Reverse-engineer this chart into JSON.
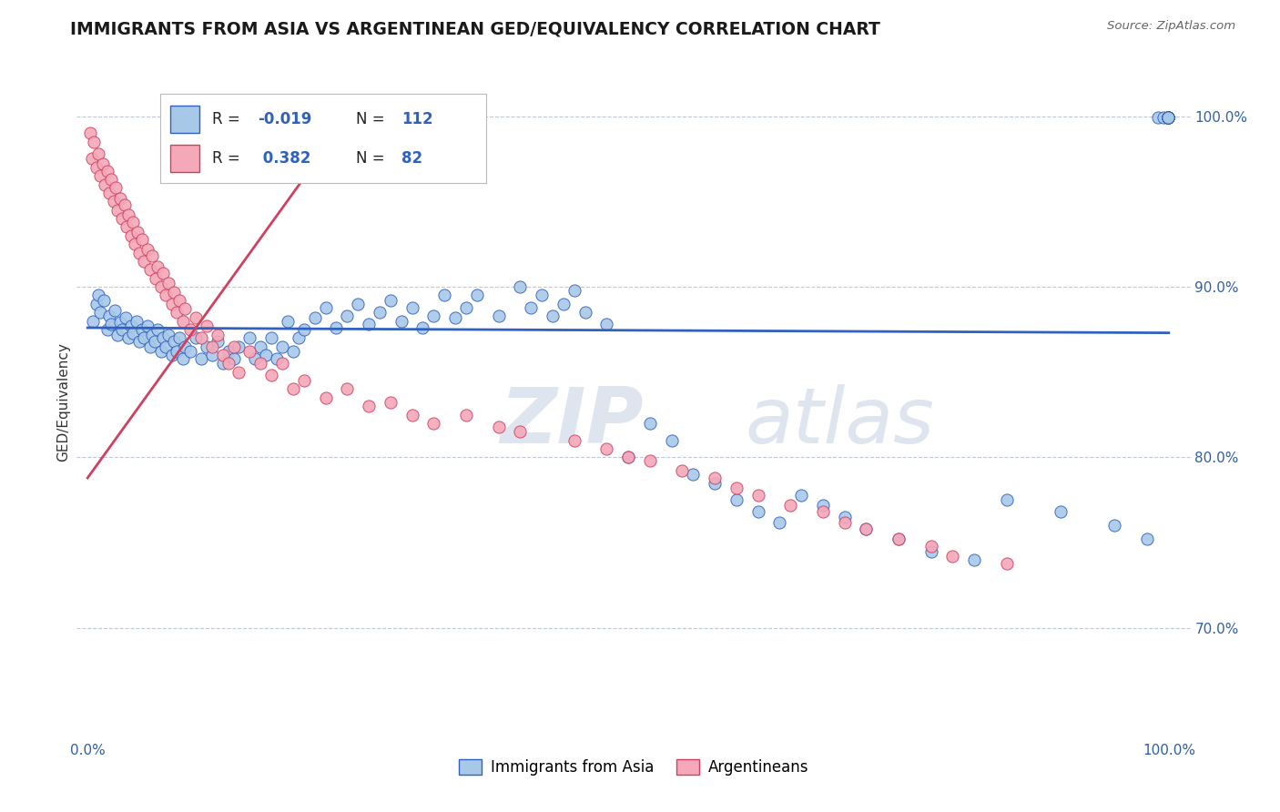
{
  "title": "IMMIGRANTS FROM ASIA VS ARGENTINEAN GED/EQUIVALENCY CORRELATION CHART",
  "source_text": "Source: ZipAtlas.com",
  "ylabel": "GED/Equivalency",
  "color_blue": "#a8c8e8",
  "color_pink": "#f4a8b8",
  "line_blue": "#3060c0",
  "line_pink": "#d04060",
  "watermark_zip": "ZIP",
  "watermark_atlas": "atlas",
  "blue_x": [
    0.005,
    0.008,
    0.01,
    0.012,
    0.015,
    0.018,
    0.02,
    0.022,
    0.025,
    0.028,
    0.03,
    0.032,
    0.035,
    0.038,
    0.04,
    0.042,
    0.045,
    0.048,
    0.05,
    0.052,
    0.055,
    0.058,
    0.06,
    0.062,
    0.065,
    0.068,
    0.07,
    0.072,
    0.075,
    0.078,
    0.08,
    0.082,
    0.085,
    0.088,
    0.09,
    0.095,
    0.1,
    0.105,
    0.11,
    0.115,
    0.12,
    0.125,
    0.13,
    0.135,
    0.14,
    0.15,
    0.155,
    0.16,
    0.165,
    0.17,
    0.175,
    0.18,
    0.185,
    0.19,
    0.195,
    0.2,
    0.21,
    0.22,
    0.23,
    0.24,
    0.25,
    0.26,
    0.27,
    0.28,
    0.29,
    0.3,
    0.31,
    0.32,
    0.33,
    0.34,
    0.35,
    0.36,
    0.38,
    0.4,
    0.41,
    0.42,
    0.43,
    0.44,
    0.45,
    0.46,
    0.48,
    0.5,
    0.52,
    0.54,
    0.56,
    0.58,
    0.6,
    0.62,
    0.64,
    0.66,
    0.68,
    0.7,
    0.72,
    0.75,
    0.78,
    0.82,
    0.85,
    0.9,
    0.95,
    0.98,
    0.99,
    0.995,
    0.999,
    0.999,
    0.999,
    0.999,
    0.999,
    0.999,
    0.999,
    0.999,
    0.999,
    0.999
  ],
  "blue_y": [
    0.88,
    0.89,
    0.895,
    0.885,
    0.892,
    0.875,
    0.883,
    0.878,
    0.886,
    0.872,
    0.879,
    0.875,
    0.882,
    0.87,
    0.877,
    0.873,
    0.88,
    0.868,
    0.875,
    0.87,
    0.877,
    0.865,
    0.872,
    0.868,
    0.875,
    0.862,
    0.87,
    0.865,
    0.872,
    0.86,
    0.868,
    0.862,
    0.87,
    0.858,
    0.865,
    0.862,
    0.87,
    0.858,
    0.865,
    0.86,
    0.868,
    0.855,
    0.862,
    0.858,
    0.865,
    0.87,
    0.858,
    0.865,
    0.86,
    0.87,
    0.858,
    0.865,
    0.88,
    0.862,
    0.87,
    0.875,
    0.882,
    0.888,
    0.876,
    0.883,
    0.89,
    0.878,
    0.885,
    0.892,
    0.88,
    0.888,
    0.876,
    0.883,
    0.895,
    0.882,
    0.888,
    0.895,
    0.883,
    0.9,
    0.888,
    0.895,
    0.883,
    0.89,
    0.898,
    0.885,
    0.878,
    0.8,
    0.82,
    0.81,
    0.79,
    0.785,
    0.775,
    0.768,
    0.762,
    0.778,
    0.772,
    0.765,
    0.758,
    0.752,
    0.745,
    0.74,
    0.775,
    0.768,
    0.76,
    0.752,
    0.999,
    0.999,
    0.999,
    0.999,
    0.999,
    0.999,
    0.999,
    0.999,
    0.999,
    0.999,
    0.999,
    0.999
  ],
  "pink_x": [
    0.002,
    0.004,
    0.006,
    0.008,
    0.01,
    0.012,
    0.014,
    0.016,
    0.018,
    0.02,
    0.022,
    0.024,
    0.026,
    0.028,
    0.03,
    0.032,
    0.034,
    0.036,
    0.038,
    0.04,
    0.042,
    0.044,
    0.046,
    0.048,
    0.05,
    0.052,
    0.055,
    0.058,
    0.06,
    0.063,
    0.065,
    0.068,
    0.07,
    0.072,
    0.075,
    0.078,
    0.08,
    0.082,
    0.085,
    0.088,
    0.09,
    0.095,
    0.1,
    0.105,
    0.11,
    0.115,
    0.12,
    0.125,
    0.13,
    0.135,
    0.14,
    0.15,
    0.16,
    0.17,
    0.18,
    0.19,
    0.2,
    0.22,
    0.24,
    0.26,
    0.28,
    0.3,
    0.32,
    0.35,
    0.38,
    0.4,
    0.45,
    0.48,
    0.5,
    0.52,
    0.55,
    0.58,
    0.6,
    0.62,
    0.65,
    0.68,
    0.7,
    0.72,
    0.75,
    0.78,
    0.8,
    0.85
  ],
  "pink_y": [
    0.99,
    0.975,
    0.985,
    0.97,
    0.978,
    0.965,
    0.972,
    0.96,
    0.968,
    0.955,
    0.963,
    0.95,
    0.958,
    0.945,
    0.952,
    0.94,
    0.948,
    0.935,
    0.942,
    0.93,
    0.938,
    0.925,
    0.932,
    0.92,
    0.928,
    0.915,
    0.922,
    0.91,
    0.918,
    0.905,
    0.912,
    0.9,
    0.908,
    0.895,
    0.902,
    0.89,
    0.897,
    0.885,
    0.892,
    0.88,
    0.887,
    0.875,
    0.882,
    0.87,
    0.877,
    0.865,
    0.872,
    0.86,
    0.855,
    0.865,
    0.85,
    0.862,
    0.855,
    0.848,
    0.855,
    0.84,
    0.845,
    0.835,
    0.84,
    0.83,
    0.832,
    0.825,
    0.82,
    0.825,
    0.818,
    0.815,
    0.81,
    0.805,
    0.8,
    0.798,
    0.792,
    0.788,
    0.782,
    0.778,
    0.772,
    0.768,
    0.762,
    0.758,
    0.752,
    0.748,
    0.742,
    0.738
  ],
  "xlim": [
    0.0,
    1.0
  ],
  "ylim": [
    0.635,
    1.03
  ],
  "yticks": [
    0.7,
    0.8,
    0.9,
    1.0
  ],
  "ytick_labels": [
    "70.0%",
    "80.0%",
    "90.0%",
    "100.0%"
  ],
  "blue_trend_x": [
    0.0,
    1.0
  ],
  "blue_trend_y": [
    0.876,
    0.873
  ],
  "pink_trend_x": [
    0.0,
    0.23
  ],
  "pink_trend_y": [
    0.788,
    0.99
  ]
}
